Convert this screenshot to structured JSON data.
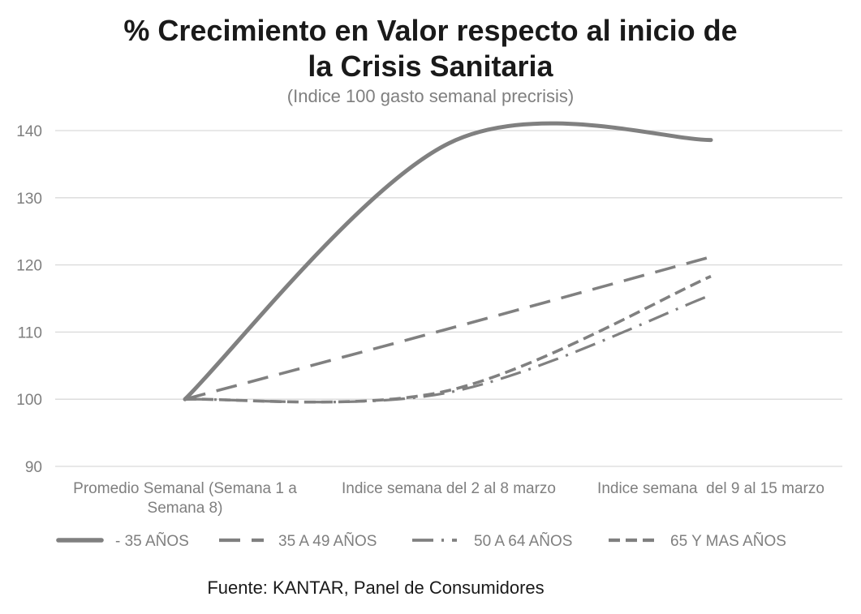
{
  "colors": {
    "series": "#808080",
    "grid": "#d9d9d9",
    "axis_text": "#7f7f7f"
  },
  "chart_data": {
    "type": "line",
    "title": "% Crecimiento en Valor respecto al inicio de la Crisis Sanitaria",
    "subtitle": "(Indice 100 gasto semanal precrisis)",
    "categories": [
      "Promedio Semanal (Semana 1 a Semana 8)",
      "Indice semana del 2 al 8 marzo",
      "Indice semana  del 9 al 15 marzo"
    ],
    "series": [
      {
        "name": "- 35 AÑOS",
        "values": [
          100,
          138.1,
          138.6
        ],
        "line_style": "solid"
      },
      {
        "name": "35 A 49 AÑOS",
        "values": [
          100,
          110.5,
          121.2
        ],
        "line_style": "dash"
      },
      {
        "name": "50 A 64 AÑOS",
        "values": [
          100,
          101.0,
          115.5
        ],
        "line_style": "dash-dot"
      },
      {
        "name": "65 Y MAS AÑOS",
        "values": [
          100,
          101.3,
          118.3
        ],
        "line_style": "short-dash"
      }
    ],
    "ylim": [
      90,
      140
    ],
    "yticks": [
      90,
      100,
      110,
      120,
      130,
      140
    ],
    "grid": true,
    "legend_position": "bottom",
    "smooth": true
  },
  "source": "Fuente: KANTAR, Panel de Consumidores"
}
